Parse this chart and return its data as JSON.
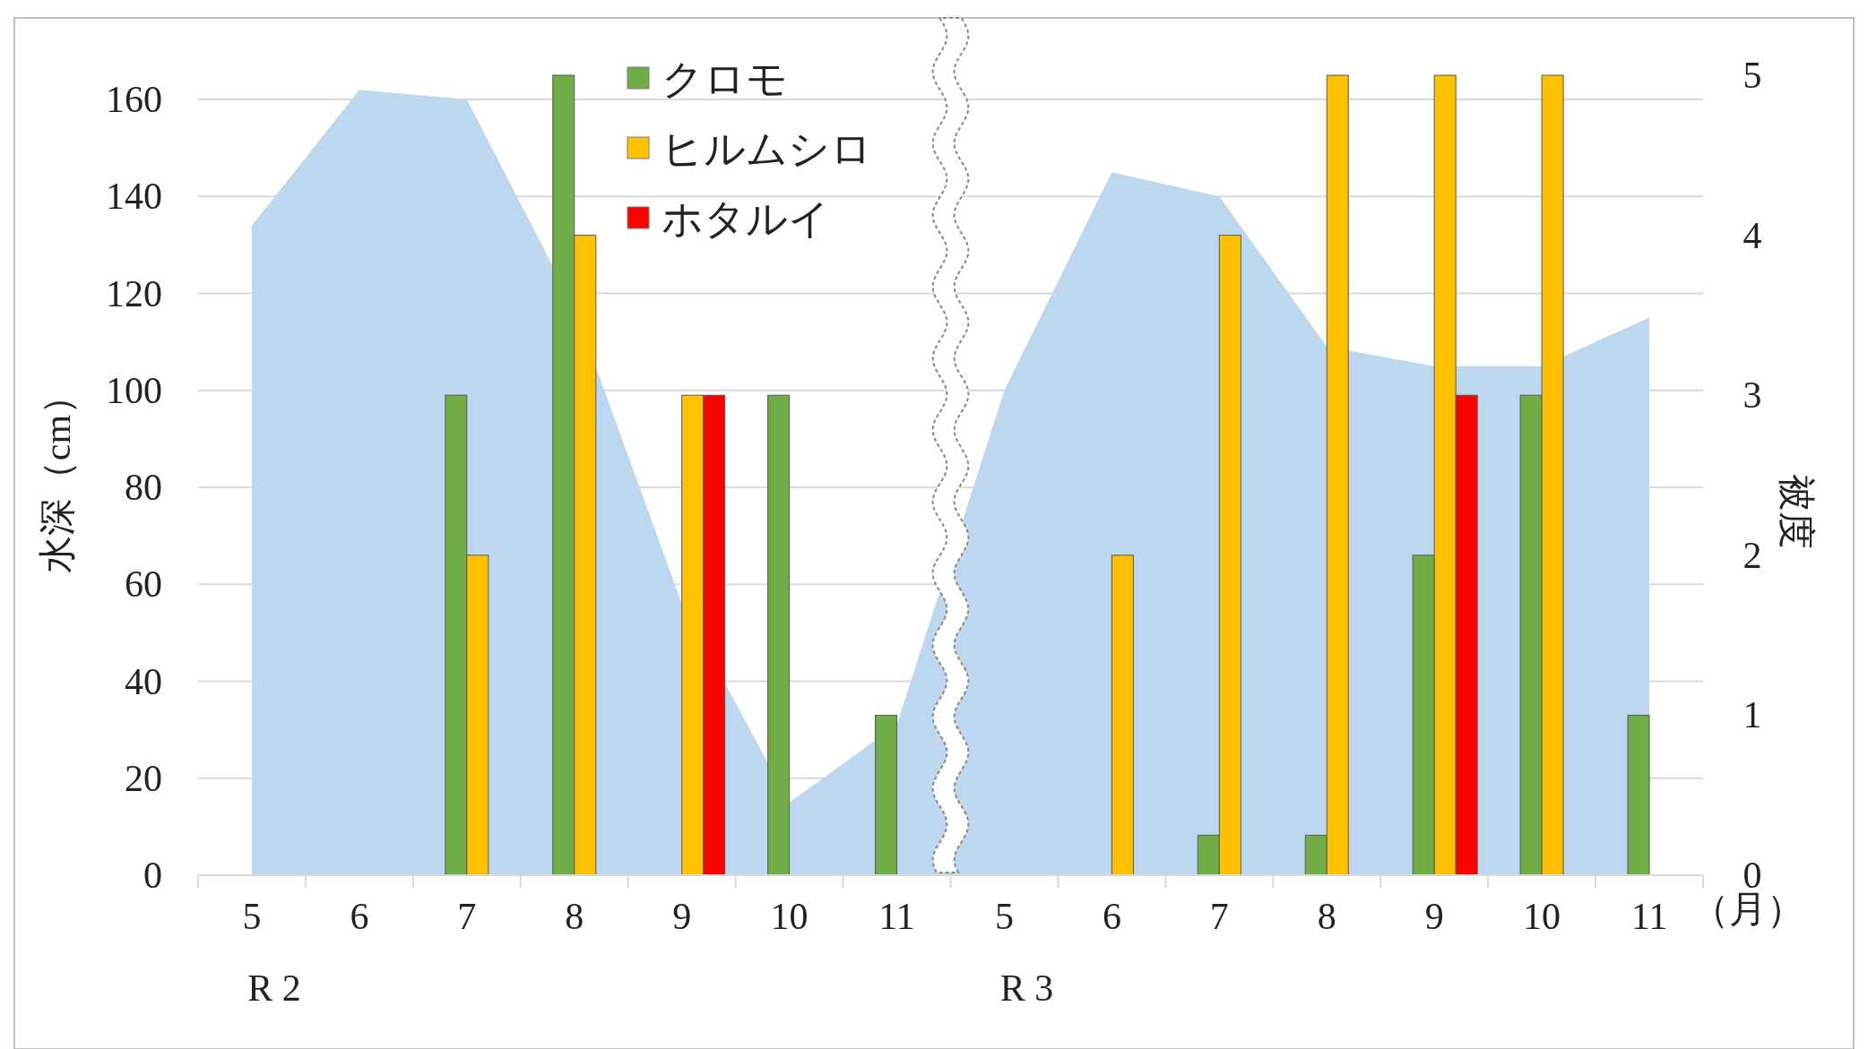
{
  "chart_data": {
    "type": "bar",
    "xlabel": "（月）",
    "ylabel": "水深（cm）",
    "y2label": "被度",
    "categories": [
      "5",
      "6",
      "7",
      "8",
      "9",
      "10",
      "11",
      "5",
      "6",
      "7",
      "8",
      "9",
      "10",
      "11"
    ],
    "series": [
      {
        "type": "area",
        "axis": "y",
        "color": "#bdd7ee",
        "values": [
          134,
          162,
          160,
          117,
          56,
          15,
          31,
          100,
          145,
          140,
          109,
          105,
          105,
          115
        ]
      },
      {
        "name": "クロモ",
        "axis": "y2",
        "color": "#70ad47",
        "values": [
          null,
          null,
          3,
          5,
          null,
          3,
          1,
          null,
          null,
          0.25,
          0.25,
          2,
          3,
          1
        ]
      },
      {
        "name": "ヒルムシロ",
        "axis": "y2",
        "color": "#ffc000",
        "values": [
          null,
          null,
          2,
          4,
          3,
          null,
          null,
          null,
          2,
          4,
          5,
          5,
          5,
          null
        ]
      },
      {
        "name": "ホタルイ",
        "axis": "y2",
        "color": "#ff0000",
        "values": [
          null,
          null,
          null,
          null,
          3,
          null,
          null,
          null,
          null,
          null,
          null,
          3,
          null,
          null
        ]
      }
    ],
    "ylim": [
      0,
      165
    ],
    "yticks": [
      0,
      20,
      40,
      60,
      80,
      100,
      120,
      140,
      160
    ],
    "y2lim": [
      0,
      5
    ],
    "y2ticks": [
      0,
      1,
      2,
      3,
      4,
      5
    ],
    "grid": "y",
    "legend": "top",
    "annotations": [
      "R 2",
      "R 3"
    ]
  }
}
